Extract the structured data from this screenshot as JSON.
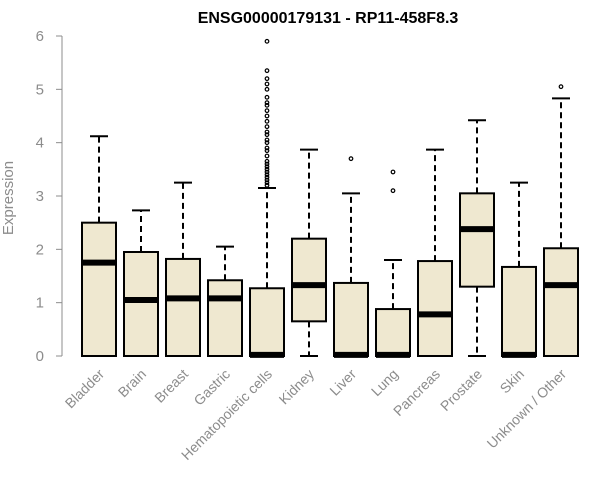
{
  "chart_data": {
    "type": "box",
    "title": "ENSG00000179131 - RP11-458F8.3",
    "xlabel": "",
    "ylabel": "Expression",
    "ylim": [
      0,
      6
    ],
    "yticks": [
      0,
      1,
      2,
      3,
      4,
      5,
      6
    ],
    "box_fill": "#efe8d0",
    "categories": [
      "Bladder",
      "Brain",
      "Breast",
      "Gastric",
      "Hematopoietic cells",
      "Kidney",
      "Liver",
      "Lung",
      "Pancreas",
      "Prostate",
      "Skin",
      "Unknown / Other"
    ],
    "boxes": [
      {
        "min": 0.0,
        "q1": 0.0,
        "median": 1.75,
        "q3": 2.5,
        "max": 4.12,
        "outliers": []
      },
      {
        "min": 0.0,
        "q1": 0.0,
        "median": 1.05,
        "q3": 1.95,
        "max": 2.73,
        "outliers": []
      },
      {
        "min": 0.0,
        "q1": 0.0,
        "median": 1.08,
        "q3": 1.82,
        "max": 3.25,
        "outliers": []
      },
      {
        "min": 0.0,
        "q1": 0.0,
        "median": 1.08,
        "q3": 1.42,
        "max": 2.05,
        "outliers": []
      },
      {
        "min": 0.0,
        "q1": 0.0,
        "median": 0.02,
        "q3": 1.27,
        "max": 3.15,
        "outliers": [
          3.2,
          3.25,
          3.3,
          3.35,
          3.4,
          3.45,
          3.5,
          3.55,
          3.6,
          3.65,
          3.75,
          3.85,
          3.9,
          4.0,
          4.05,
          4.15,
          4.2,
          4.3,
          4.4,
          4.5,
          4.6,
          4.7,
          4.75,
          4.85,
          5.0,
          5.1,
          5.2,
          5.35,
          5.9
        ]
      },
      {
        "min": 0.0,
        "q1": 0.65,
        "median": 1.33,
        "q3": 2.2,
        "max": 3.87,
        "outliers": []
      },
      {
        "min": 0.0,
        "q1": 0.0,
        "median": 0.02,
        "q3": 1.37,
        "max": 3.05,
        "outliers": [
          3.7
        ]
      },
      {
        "min": 0.0,
        "q1": 0.0,
        "median": 0.02,
        "q3": 0.88,
        "max": 1.8,
        "outliers": [
          3.1,
          3.45
        ]
      },
      {
        "min": 0.0,
        "q1": 0.0,
        "median": 0.78,
        "q3": 1.78,
        "max": 3.87,
        "outliers": []
      },
      {
        "min": 0.0,
        "q1": 1.3,
        "median": 2.38,
        "q3": 3.05,
        "max": 4.42,
        "outliers": []
      },
      {
        "min": 0.0,
        "q1": 0.0,
        "median": 0.02,
        "q3": 1.67,
        "max": 3.25,
        "outliers": []
      },
      {
        "min": 0.0,
        "q1": 0.0,
        "median": 1.33,
        "q3": 2.02,
        "max": 4.83,
        "outliers": [
          5.05
        ]
      }
    ]
  }
}
